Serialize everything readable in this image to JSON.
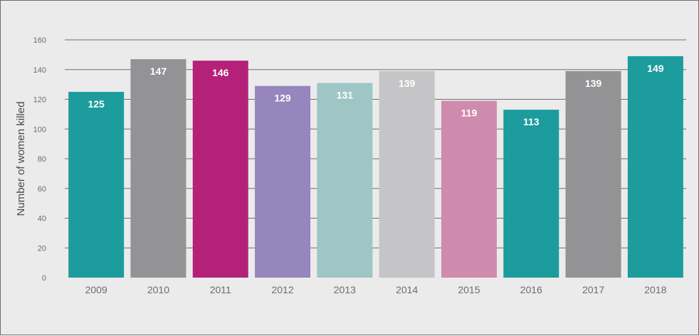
{
  "chart_data": {
    "type": "bar",
    "title": "",
    "xlabel": "",
    "ylabel": "Number of women killed",
    "ylim": [
      0,
      160
    ],
    "yticks": [
      "0",
      "20",
      "40",
      "60",
      "80",
      "100",
      "120",
      "140",
      "160"
    ],
    "grid": true,
    "categories": [
      "2009",
      "2010",
      "2011",
      "2012",
      "2013",
      "2014",
      "2015",
      "2016",
      "2017",
      "2018"
    ],
    "values": [
      125,
      147,
      146,
      129,
      131,
      139,
      119,
      113,
      139,
      149
    ],
    "value_labels": [
      "125",
      "147",
      "146",
      "129",
      "131",
      "139",
      "119",
      "113",
      "139",
      "149"
    ],
    "colors": [
      "#1c9c9c",
      "#939395",
      "#b42179",
      "#9785bd",
      "#9dc6c5",
      "#c5c5c7",
      "#cf8bad",
      "#1c9c9c",
      "#939395",
      "#1c9c9c"
    ]
  }
}
